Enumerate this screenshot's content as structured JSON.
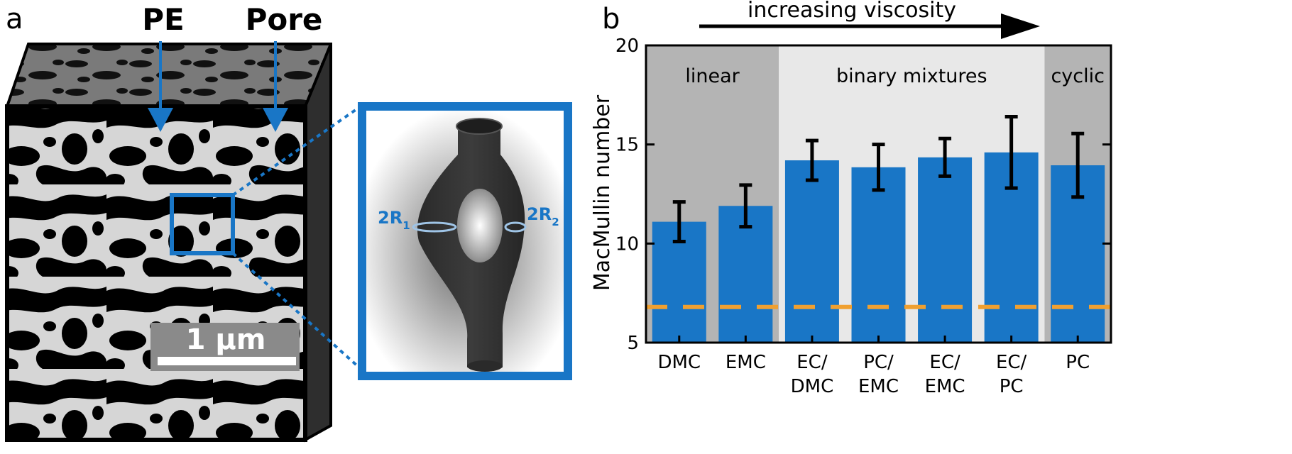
{
  "panel_a": {
    "letter": "a",
    "labels": {
      "pe": "PE",
      "pore": "Pore"
    },
    "scale_bar": "1 µm",
    "inset": {
      "r1_main": "2R",
      "r1_sub": "1",
      "r2_main": "2R",
      "r2_sub": "2"
    },
    "colors": {
      "accent": "#1976c6",
      "solid": "#000000",
      "pore_phase": "#d6d6d6",
      "top_face": "#7a7a7a",
      "pore_body": "#333333"
    }
  },
  "panel_b": {
    "letter": "b",
    "arrow_label": "increasing viscosity"
  },
  "chart_data": {
    "type": "bar",
    "title": "",
    "xlabel": "",
    "ylabel": "MacMullin number",
    "ylim": [
      5,
      20
    ],
    "yticks": [
      5,
      10,
      15,
      20
    ],
    "categories": [
      [
        "DMC"
      ],
      [
        "EMC"
      ],
      [
        "EC/",
        "DMC"
      ],
      [
        "PC/",
        "EMC"
      ],
      [
        "EC/",
        "EMC"
      ],
      [
        "EC/",
        "PC"
      ],
      [
        "PC"
      ]
    ],
    "values": [
      11.1,
      11.9,
      14.2,
      13.85,
      14.35,
      14.6,
      13.95
    ],
    "error_low": [
      10.1,
      10.85,
      13.2,
      12.7,
      13.4,
      12.8,
      12.35
    ],
    "error_high": [
      12.1,
      12.95,
      15.2,
      15.0,
      15.3,
      16.4,
      15.55
    ],
    "reference_line": 6.8,
    "regions": [
      {
        "label": "linear",
        "first_index": 0,
        "last_index": 1,
        "color": "#b4b4b4"
      },
      {
        "label": "binary mixtures",
        "first_index": 2,
        "last_index": 5,
        "color": "#e8e8e8"
      },
      {
        "label": "cyclic",
        "first_index": 6,
        "last_index": 6,
        "color": "#b4b4b4"
      }
    ],
    "grid": false,
    "colors": {
      "bar": "#1976c6",
      "reference_line": "#f0a030",
      "error_bar": "#000000"
    }
  }
}
